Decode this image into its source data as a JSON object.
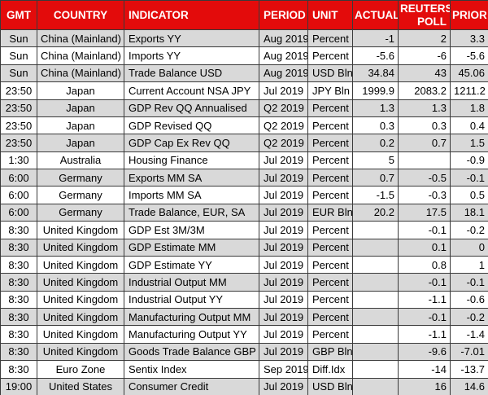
{
  "colors": {
    "header_bg": "#e30b0b",
    "header_text": "#ffffff",
    "row_alt_bg": "#d9d9d9",
    "row_bg": "#ffffff",
    "border": "#3a3a3a",
    "cell_text": "#000000"
  },
  "table": {
    "columns": [
      {
        "key": "gmt",
        "label": "GMT"
      },
      {
        "key": "country",
        "label": "COUNTRY"
      },
      {
        "key": "indicator",
        "label": "INDICATOR"
      },
      {
        "key": "period",
        "label": "PERIOD"
      },
      {
        "key": "unit",
        "label": "UNIT"
      },
      {
        "key": "actual",
        "label": "ACTUAL"
      },
      {
        "key": "poll",
        "label": "REUTERS POLL"
      },
      {
        "key": "prior",
        "label": "PRIOR"
      }
    ],
    "rows": [
      {
        "gmt": "Sun",
        "country": "China (Mainland)",
        "indicator": "Exports YY",
        "period": "Aug 2019",
        "unit": "Percent",
        "actual": "-1",
        "poll": "2",
        "prior": "3.3"
      },
      {
        "gmt": "Sun",
        "country": "China (Mainland)",
        "indicator": "Imports YY",
        "period": "Aug 2019",
        "unit": "Percent",
        "actual": "-5.6",
        "poll": "-6",
        "prior": "-5.6"
      },
      {
        "gmt": "Sun",
        "country": "China (Mainland)",
        "indicator": "Trade Balance USD",
        "period": "Aug 2019",
        "unit": "USD Bln",
        "actual": "34.84",
        "poll": "43",
        "prior": "45.06"
      },
      {
        "gmt": "23:50",
        "country": "Japan",
        "indicator": "Current Account NSA JPY",
        "period": "Jul 2019",
        "unit": "JPY Bln",
        "actual": "1999.9",
        "poll": "2083.2",
        "prior": "1211.2"
      },
      {
        "gmt": "23:50",
        "country": "Japan",
        "indicator": "GDP Rev QQ Annualised",
        "period": "Q2 2019",
        "unit": "Percent",
        "actual": "1.3",
        "poll": "1.3",
        "prior": "1.8"
      },
      {
        "gmt": "23:50",
        "country": "Japan",
        "indicator": "GDP Revised QQ",
        "period": "Q2 2019",
        "unit": "Percent",
        "actual": "0.3",
        "poll": "0.3",
        "prior": "0.4"
      },
      {
        "gmt": "23:50",
        "country": "Japan",
        "indicator": "GDP Cap Ex Rev QQ",
        "period": "Q2 2019",
        "unit": "Percent",
        "actual": "0.2",
        "poll": "0.7",
        "prior": "1.5"
      },
      {
        "gmt": "1:30",
        "country": "Australia",
        "indicator": "Housing Finance",
        "period": "Jul 2019",
        "unit": "Percent",
        "actual": "5",
        "poll": "",
        "prior": "-0.9"
      },
      {
        "gmt": "6:00",
        "country": "Germany",
        "indicator": "Exports MM SA",
        "period": "Jul 2019",
        "unit": "Percent",
        "actual": "0.7",
        "poll": "-0.5",
        "prior": "-0.1"
      },
      {
        "gmt": "6:00",
        "country": "Germany",
        "indicator": "Imports MM SA",
        "period": "Jul 2019",
        "unit": "Percent",
        "actual": "-1.5",
        "poll": "-0.3",
        "prior": "0.5"
      },
      {
        "gmt": "6:00",
        "country": "Germany",
        "indicator": "Trade Balance, EUR, SA",
        "period": "Jul 2019",
        "unit": "EUR Bln",
        "actual": "20.2",
        "poll": "17.5",
        "prior": "18.1"
      },
      {
        "gmt": "8:30",
        "country": "United Kingdom",
        "indicator": "GDP Est 3M/3M",
        "period": "Jul 2019",
        "unit": "Percent",
        "actual": "",
        "poll": "-0.1",
        "prior": "-0.2"
      },
      {
        "gmt": "8:30",
        "country": "United Kingdom",
        "indicator": "GDP Estimate MM",
        "period": "Jul 2019",
        "unit": "Percent",
        "actual": "",
        "poll": "0.1",
        "prior": "0"
      },
      {
        "gmt": "8:30",
        "country": "United Kingdom",
        "indicator": "GDP Estimate YY",
        "period": "Jul 2019",
        "unit": "Percent",
        "actual": "",
        "poll": "0.8",
        "prior": "1"
      },
      {
        "gmt": "8:30",
        "country": "United Kingdom",
        "indicator": "Industrial Output MM",
        "period": "Jul 2019",
        "unit": "Percent",
        "actual": "",
        "poll": "-0.1",
        "prior": "-0.1"
      },
      {
        "gmt": "8:30",
        "country": "United Kingdom",
        "indicator": "Industrial Output YY",
        "period": "Jul 2019",
        "unit": "Percent",
        "actual": "",
        "poll": "-1.1",
        "prior": "-0.6"
      },
      {
        "gmt": "8:30",
        "country": "United Kingdom",
        "indicator": "Manufacturing Output MM",
        "period": "Jul 2019",
        "unit": "Percent",
        "actual": "",
        "poll": "-0.1",
        "prior": "-0.2"
      },
      {
        "gmt": "8:30",
        "country": "United Kingdom",
        "indicator": "Manufacturing Output YY",
        "period": "Jul 2019",
        "unit": "Percent",
        "actual": "",
        "poll": "-1.1",
        "prior": "-1.4"
      },
      {
        "gmt": "8:30",
        "country": "United Kingdom",
        "indicator": "Goods Trade Balance GBP",
        "period": "Jul 2019",
        "unit": "GBP Bln",
        "actual": "",
        "poll": "-9.6",
        "prior": "-7.01"
      },
      {
        "gmt": "8:30",
        "country": "Euro Zone",
        "indicator": "Sentix Index",
        "period": "Sep 2019",
        "unit": "Diff.Idx",
        "actual": "",
        "poll": "-14",
        "prior": "-13.7"
      },
      {
        "gmt": "19:00",
        "country": "United States",
        "indicator": "Consumer Credit",
        "period": "Jul 2019",
        "unit": "USD Bln",
        "actual": "",
        "poll": "16",
        "prior": "14.6"
      }
    ]
  }
}
